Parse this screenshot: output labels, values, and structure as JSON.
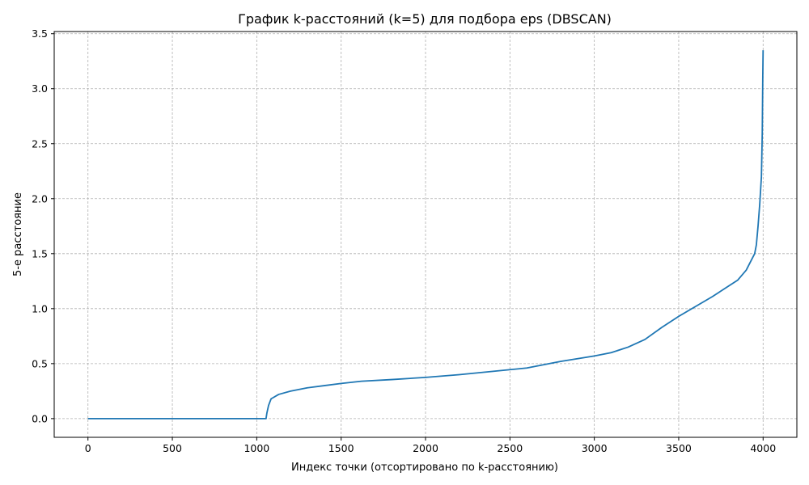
{
  "chart_data": {
    "type": "line",
    "title": "График k-расстояний (k=5) для подбора eps (DBSCAN)",
    "xlabel": "Индекс точки (отсортировано по k-расстоянию)",
    "ylabel": "5-е расстояние",
    "xlim": [
      -200,
      4200
    ],
    "ylim": [
      -0.17,
      3.52
    ],
    "x_ticks": [
      0,
      500,
      1000,
      1500,
      2000,
      2500,
      3000,
      3500,
      4000
    ],
    "y_ticks": [
      0.0,
      0.5,
      1.0,
      1.5,
      2.0,
      2.5,
      3.0,
      3.5
    ],
    "x_tick_labels": [
      "0",
      "500",
      "1000",
      "1500",
      "2000",
      "2500",
      "3000",
      "3500",
      "4000"
    ],
    "y_tick_labels": [
      "0.0",
      "0.5",
      "1.0",
      "1.5",
      "2.0",
      "2.5",
      "3.0",
      "3.5"
    ],
    "grid": true,
    "grid_style": "dashed",
    "line_color": "#1f77b4",
    "series": [
      {
        "x": [
          0,
          500,
          1000,
          1055,
          1060,
          1070,
          1085,
          1130,
          1200,
          1300,
          1400,
          1500,
          1620,
          1800,
          2000,
          2200,
          2400,
          2600,
          2800,
          3000,
          3100,
          3200,
          3300,
          3400,
          3500,
          3600,
          3700,
          3800,
          3850,
          3900,
          3930,
          3950,
          3960,
          3970,
          3980,
          3990,
          3995,
          3998,
          4000
        ],
        "y": [
          0.0,
          0.0,
          0.0,
          0.0,
          0.05,
          0.12,
          0.18,
          0.22,
          0.25,
          0.28,
          0.3,
          0.32,
          0.34,
          0.355,
          0.375,
          0.4,
          0.43,
          0.46,
          0.52,
          0.57,
          0.6,
          0.65,
          0.72,
          0.83,
          0.93,
          1.02,
          1.11,
          1.21,
          1.26,
          1.35,
          1.44,
          1.5,
          1.58,
          1.75,
          1.95,
          2.2,
          2.6,
          3.1,
          3.35
        ]
      }
    ]
  }
}
